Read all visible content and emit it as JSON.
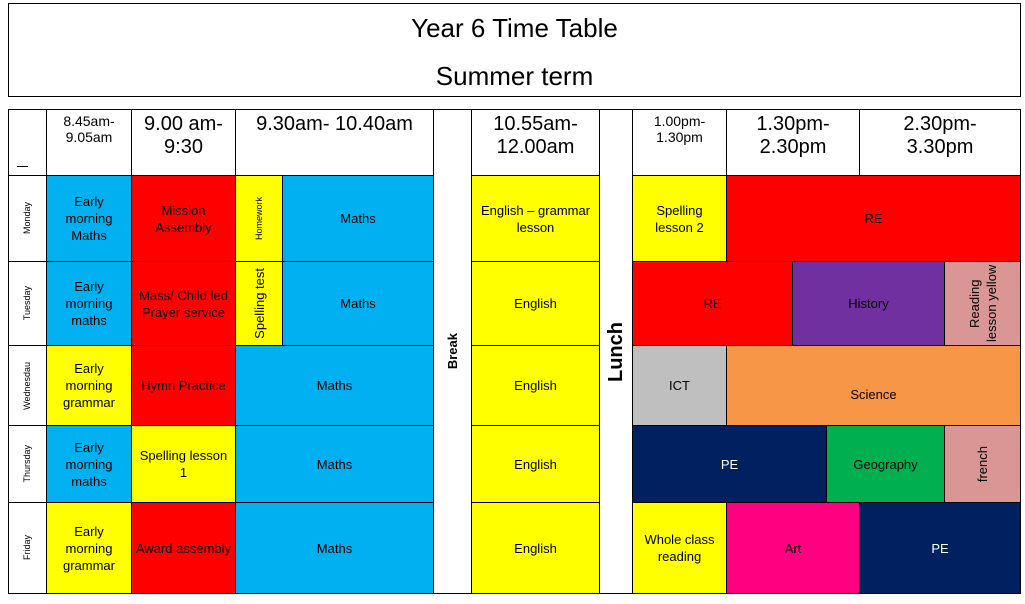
{
  "colors": {
    "blue": "#00b0f0",
    "red": "#ff0000",
    "yellow": "#ffff00",
    "purple": "#7030a0",
    "pink": "#da9694",
    "grey": "#bfbfbf",
    "orange": "#f79646",
    "navy": "#002060",
    "green": "#00b050",
    "magenta": "#ff0080",
    "white": "#ffffff"
  },
  "title": {
    "line1": "Year 6 Time Table",
    "line2": "Summer term"
  },
  "headers": {
    "corner": "",
    "t1": "8.45am-\n9.05am",
    "t2": "9.00 am-\n9:30",
    "t3": "9.30am- 10.40am",
    "t4": "10.55am-\n12.00am",
    "t5": "1.00pm-\n1.30pm",
    "t6": "1.30pm-\n2.30pm",
    "t7": "2.30pm-\n3.30pm"
  },
  "days": [
    "Monday",
    "Tuesday",
    "Wednesdau",
    "Thursday",
    "Friday"
  ],
  "break_label": "Break",
  "lunch_label": "Lunch",
  "monday": {
    "early": "Early morning Maths",
    "slot2": "Mission Assembly",
    "homework": "Homework",
    "maths": "Maths",
    "english": "English – grammar lesson",
    "afternoon1": "Spelling lesson 2",
    "afternoon2": "RE"
  },
  "tuesday": {
    "early": "Early morning maths",
    "slot2": "Mass/ Child led Prayer service",
    "spelling_test": "Spelling test",
    "maths": "Maths",
    "english": "English",
    "re": "RE",
    "history": "History",
    "reading": "Reading lesson yellow"
  },
  "wednesday": {
    "early": "Early morning grammar",
    "slot2": "Hymn Practice",
    "maths": "Maths",
    "english": "English",
    "ict": "ICT",
    "science": "Science"
  },
  "thursday": {
    "early": "Early morning maths",
    "slot2": "Spelling lesson 1",
    "maths": "Maths",
    "english": "English",
    "pe": "PE",
    "geography": "Geography",
    "french": "french"
  },
  "friday": {
    "early": "Early morning grammar",
    "slot2": "Award assembly",
    "maths": "Maths",
    "english": "English",
    "reading": "Whole class reading",
    "art": "Art",
    "pe": "PE"
  }
}
